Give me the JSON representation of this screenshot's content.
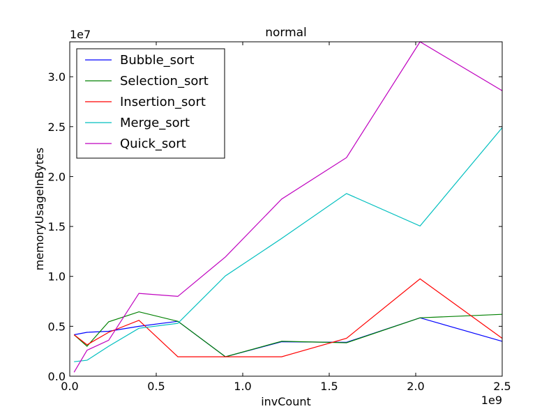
{
  "chart_data": {
    "type": "line",
    "title": "normal",
    "xlabel": "invCount",
    "ylabel": "memoryUsageInBytes",
    "x_offset_text": "1e9",
    "y_offset_text": "1e7",
    "xlim": [
      0,
      2500000000
    ],
    "ylim": [
      0,
      33500000
    ],
    "xticks": [
      0,
      500000000,
      1000000000,
      1500000000,
      2000000000,
      2500000000
    ],
    "xtick_labels": [
      "0.0",
      "0.5",
      "1.0",
      "1.5",
      "2.0",
      "2.5"
    ],
    "yticks": [
      0,
      5000000,
      10000000,
      15000000,
      20000000,
      25000000,
      30000000
    ],
    "ytick_labels": [
      "0.0",
      "0.5",
      "1.0",
      "1.5",
      "2.0",
      "2.5",
      "3.0"
    ],
    "legend_position": "top-left",
    "grid": false,
    "x": [
      25000000,
      100000000,
      225000000,
      400000000,
      625000000,
      900000000,
      1225000000,
      1600000000,
      2025000000,
      2500000000
    ],
    "series": [
      {
        "name": "Bubble_sort",
        "color": "#0000ff",
        "values": [
          4150000,
          4400000,
          4500000,
          5000000,
          5500000,
          1950000,
          3450000,
          3400000,
          5850000,
          3500000
        ]
      },
      {
        "name": "Selection_sort",
        "color": "#008000",
        "values": [
          4150000,
          3000000,
          5450000,
          6450000,
          5500000,
          1950000,
          3500000,
          3350000,
          5850000,
          6200000
        ]
      },
      {
        "name": "Insertion_sort",
        "color": "#ff0000",
        "values": [
          4150000,
          3150000,
          4400000,
          5600000,
          1950000,
          1950000,
          1950000,
          3800000,
          9750000,
          3800000
        ]
      },
      {
        "name": "Merge_sort",
        "color": "#00bfbf",
        "values": [
          1450000,
          1600000,
          3000000,
          4800000,
          5300000,
          10050000,
          13800000,
          18300000,
          15050000,
          24900000
        ]
      },
      {
        "name": "Quick_sort",
        "color": "#bf00bf",
        "values": [
          400000,
          2600000,
          3600000,
          8300000,
          8000000,
          11950000,
          17750000,
          21900000,
          33500000,
          28600000
        ]
      }
    ]
  }
}
